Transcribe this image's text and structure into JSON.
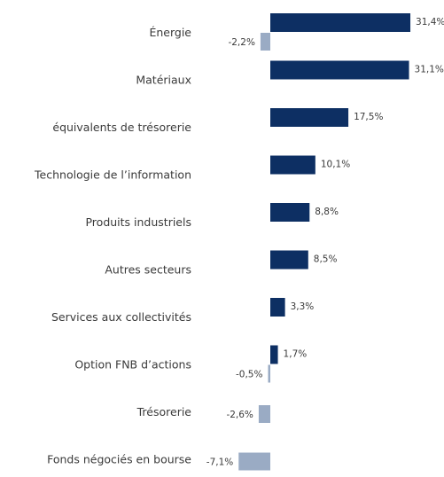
{
  "colors": {
    "primary": "#0d2f63",
    "secondary": "#9aabc4",
    "text": "#3a3a3a"
  },
  "chart_data": {
    "type": "bar",
    "orientation": "horizontal",
    "categories": [
      "Énergie",
      "Matériaux",
      "équivalents de trésorerie",
      "Technologie de l’information",
      "Produits industriels",
      "Autres secteurs",
      "Services aux collectivités",
      "Option FNB d’actions",
      "Trésorerie",
      "Fonds négociés en bourse"
    ],
    "series": [
      {
        "values": [
          31.4,
          31.1,
          17.5,
          10.1,
          8.8,
          8.5,
          3.3,
          1.7,
          null,
          null
        ]
      },
      {
        "values": [
          -2.2,
          null,
          null,
          null,
          null,
          null,
          null,
          -0.5,
          -2.6,
          -7.1
        ]
      }
    ],
    "value_labels": [
      [
        "31,4%",
        "31,1%",
        "17,5%",
        "10,1%",
        "8,8%",
        "8,5%",
        "3,3%",
        "1,7%",
        null,
        null
      ],
      [
        "-2,2%",
        null,
        null,
        null,
        null,
        null,
        null,
        "-0,5%",
        "-2,6%",
        "-7,1%"
      ]
    ],
    "xlim": [
      -7.1,
      31.4
    ],
    "grid": false,
    "legend": "none"
  }
}
